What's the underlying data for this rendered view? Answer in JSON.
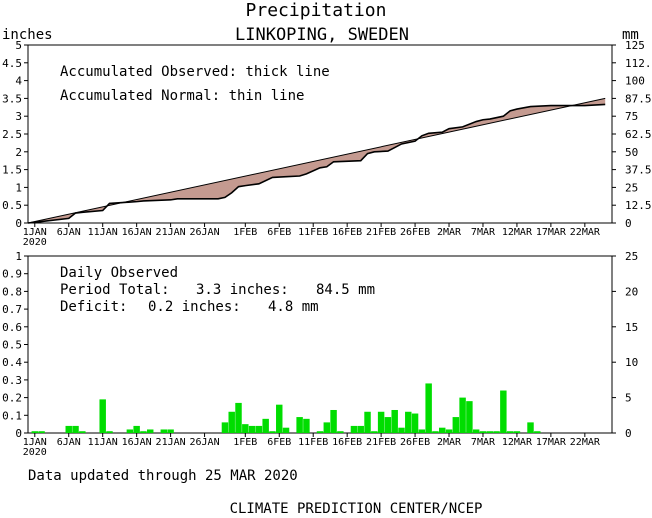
{
  "title": "Precipitation",
  "subtitle": "LINKOPING, SWEDEN",
  "footer_updated": "Data updated through 25 MAR 2020",
  "footer_credit": "CLIMATE PREDICTION CENTER/NCEP",
  "colors": {
    "fill": "#c49a90",
    "bars": "#00dd00",
    "axis": "#000000"
  },
  "chart_data": [
    {
      "type": "area",
      "title": "Precipitation",
      "left_unit": "inches",
      "right_unit": "mm",
      "legend": [
        "Accumulated Observed: thick line",
        "Accumulated Normal: thin line"
      ],
      "x_ticks": [
        "1JAN",
        "6JAN",
        "11JAN",
        "16JAN",
        "21JAN",
        "26JAN",
        "1FEB",
        "6FEB",
        "11FEB",
        "16FEB",
        "21FEB",
        "26FEB",
        "2MAR",
        "7MAR",
        "12MAR",
        "17MAR",
        "22MAR"
      ],
      "x_tick_days": [
        1,
        6,
        11,
        16,
        21,
        26,
        32,
        37,
        42,
        47,
        52,
        57,
        62,
        67,
        72,
        77,
        82
      ],
      "x_year_label": "2020",
      "x_range": [
        0,
        86
      ],
      "ylim": [
        0,
        5
      ],
      "y_ticks": [
        "0",
        "0.5",
        "1",
        "1.5",
        "2",
        "2.5",
        "3",
        "3.5",
        "4",
        "4.5",
        "5"
      ],
      "y_right_ticks": [
        "0",
        "12.5",
        "25",
        "37.5",
        "50",
        "62.5",
        "75",
        "87.5",
        "100",
        "112.5",
        "125"
      ],
      "observed": [
        [
          0,
          0
        ],
        [
          1,
          0.02
        ],
        [
          6,
          0.13
        ],
        [
          7,
          0.28
        ],
        [
          8,
          0.3
        ],
        [
          11,
          0.35
        ],
        [
          12,
          0.55
        ],
        [
          16,
          0.6
        ],
        [
          17,
          0.62
        ],
        [
          21,
          0.65
        ],
        [
          22,
          0.68
        ],
        [
          28,
          0.68
        ],
        [
          29,
          0.72
        ],
        [
          30,
          0.85
        ],
        [
          31,
          1.02
        ],
        [
          32,
          1.05
        ],
        [
          34,
          1.1
        ],
        [
          36,
          1.28
        ],
        [
          38,
          1.3
        ],
        [
          40,
          1.32
        ],
        [
          41,
          1.38
        ],
        [
          43,
          1.55
        ],
        [
          44,
          1.58
        ],
        [
          45,
          1.72
        ],
        [
          49,
          1.75
        ],
        [
          50,
          1.95
        ],
        [
          51,
          2.0
        ],
        [
          53,
          2.02
        ],
        [
          54,
          2.12
        ],
        [
          55,
          2.22
        ],
        [
          57,
          2.3
        ],
        [
          58,
          2.45
        ],
        [
          59,
          2.52
        ],
        [
          61,
          2.55
        ],
        [
          62,
          2.65
        ],
        [
          64,
          2.7
        ],
        [
          66,
          2.85
        ],
        [
          67,
          2.9
        ],
        [
          68,
          2.92
        ],
        [
          70,
          3.0
        ],
        [
          71,
          3.15
        ],
        [
          72,
          3.2
        ],
        [
          74,
          3.27
        ],
        [
          77,
          3.3
        ],
        [
          82,
          3.3
        ],
        [
          85,
          3.33
        ]
      ],
      "normal": [
        [
          0,
          0
        ],
        [
          85,
          3.5
        ]
      ]
    },
    {
      "type": "bar",
      "legend": [
        "Daily Observed"
      ],
      "period_total_label": "Period Total:",
      "period_total_in": "3.3 inches:",
      "period_total_mm": "84.5 mm",
      "deficit_label": "Deficit:",
      "deficit_in": "0.2 inches:",
      "deficit_mm": "4.8 mm",
      "left_unit": "",
      "right_unit": "",
      "ylim": [
        0,
        1
      ],
      "y_ticks": [
        "0",
        "0.1",
        "0.2",
        "0.3",
        "0.4",
        "0.5",
        "0.6",
        "0.7",
        "0.8",
        "0.9",
        "1"
      ],
      "y_right_ticks": [
        "0",
        "5",
        "10",
        "15",
        "20",
        "25"
      ],
      "days": [
        1,
        2,
        6,
        7,
        8,
        11,
        12,
        15,
        16,
        17,
        18,
        20,
        21,
        29,
        30,
        31,
        32,
        33,
        34,
        35,
        36,
        37,
        38,
        40,
        41,
        43,
        44,
        45,
        46,
        48,
        49,
        50,
        51,
        52,
        53,
        54,
        55,
        56,
        57,
        58,
        59,
        60,
        61,
        62,
        63,
        64,
        65,
        66,
        67,
        68,
        69,
        70,
        71,
        72,
        74,
        75
      ],
      "values": [
        0.01,
        0.01,
        0.04,
        0.04,
        0.01,
        0.19,
        0.01,
        0.02,
        0.04,
        0.01,
        0.02,
        0.02,
        0.02,
        0.06,
        0.12,
        0.17,
        0.05,
        0.04,
        0.04,
        0.08,
        0.01,
        0.16,
        0.03,
        0.09,
        0.08,
        0.01,
        0.06,
        0.13,
        0.01,
        0.04,
        0.04,
        0.12,
        0.01,
        0.12,
        0.09,
        0.13,
        0.03,
        0.12,
        0.11,
        0.02,
        0.28,
        0.01,
        0.03,
        0.02,
        0.09,
        0.2,
        0.18,
        0.02,
        0.01,
        0.01,
        0.01,
        0.24,
        0.01,
        0.01,
        0.06,
        0.01
      ]
    }
  ]
}
